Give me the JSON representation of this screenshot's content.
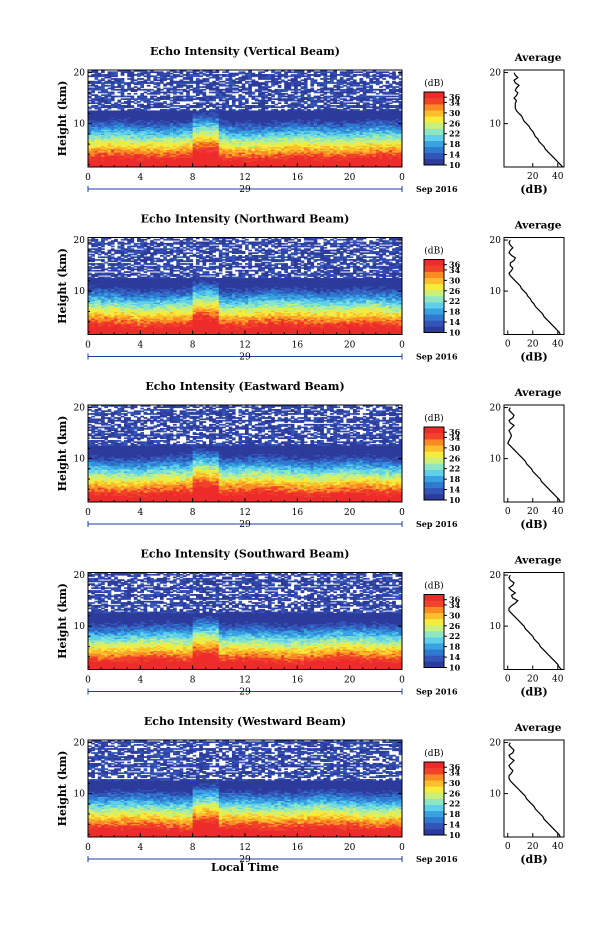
{
  "chart_data": {
    "type": "heatmap",
    "shared": {
      "xlabel": "Local Time",
      "x_ticks": [
        "0",
        "4",
        "8",
        "12",
        "16",
        "20",
        "0"
      ],
      "xlim": [
        0,
        24
      ],
      "date_day": "29",
      "date_month": "Sep 2016",
      "ylabel": "Height (km)",
      "y_ticks": [
        "20",
        "10"
      ],
      "ylim": [
        1.5,
        20.5
      ],
      "colorbar": {
        "label": "(dB)",
        "ticks": [
          "36",
          "34",
          "30",
          "26",
          "22",
          "18",
          "14",
          "10"
        ],
        "range": [
          10,
          38
        ],
        "colors": [
          "#2d3b9c",
          "#3354b8",
          "#2f7ad0",
          "#38a3e0",
          "#5fd0ec",
          "#8fe7c2",
          "#c9ef7d",
          "#f6ec3c",
          "#fbbf2b",
          "#f98a24",
          "#f0432a",
          "#ee2b2b"
        ]
      },
      "average": {
        "title": "Average",
        "xlabel": "(dB)",
        "y_ticks": [
          "20",
          "10"
        ],
        "ylim": [
          1.5,
          20.5
        ],
        "xlim": [
          -3,
          45
        ],
        "heights": [
          1.5,
          2,
          2.5,
          3,
          3.5,
          4,
          4.5,
          5,
          5.5,
          6,
          6.5,
          7,
          7.5,
          8,
          8.5,
          9,
          9.5,
          10,
          10.5,
          11,
          11.5,
          12,
          12.5,
          13,
          13.5,
          14,
          14.5,
          15,
          15.5,
          16,
          16.5,
          17,
          17.5,
          18,
          18.5,
          19,
          19.5,
          20
        ]
      }
    },
    "panels": [
      {
        "title": "Echo Intensity (Vertical Beam)",
        "avg_x_ticks": [
          "20",
          "40"
        ],
        "profile_db": [
          44,
          42,
          40,
          38,
          36,
          34,
          32,
          30,
          29,
          27,
          25,
          24,
          22,
          21,
          20,
          18,
          17,
          15,
          13,
          12,
          11,
          9,
          7,
          6,
          6,
          6,
          7,
          5,
          7,
          8,
          6,
          7,
          9,
          6,
          5,
          8,
          6,
          5
        ]
      },
      {
        "title": "Echo Intensity (Northward Beam)",
        "avg_x_ticks": [
          "0",
          "20",
          "40"
        ],
        "profile_db": [
          42,
          41,
          39,
          37,
          35,
          33,
          31,
          29,
          28,
          26,
          24,
          22,
          21,
          19,
          18,
          16,
          15,
          13,
          11,
          10,
          8,
          6,
          4,
          2,
          1,
          3,
          4,
          2,
          2,
          5,
          6,
          3,
          1,
          2,
          4,
          2,
          1,
          2
        ]
      },
      {
        "title": "Echo Intensity (Eastward Beam)",
        "avg_x_ticks": [
          "0",
          "20",
          "40"
        ],
        "profile_db": [
          42,
          41,
          39,
          37,
          35,
          33,
          31,
          29,
          27,
          26,
          24,
          22,
          20,
          19,
          17,
          15,
          14,
          12,
          10,
          8,
          6,
          4,
          2,
          0,
          1,
          2,
          3,
          2,
          1,
          3,
          5,
          2,
          1,
          4,
          5,
          3,
          1,
          2
        ]
      },
      {
        "title": "Echo Intensity (Southward Beam)",
        "avg_x_ticks": [
          "0",
          "20",
          "40"
        ],
        "profile_db": [
          43,
          41,
          40,
          38,
          36,
          34,
          32,
          30,
          28,
          26,
          25,
          23,
          21,
          20,
          18,
          16,
          14,
          13,
          11,
          9,
          7,
          5,
          3,
          1,
          1,
          3,
          6,
          8,
          4,
          3,
          6,
          3,
          1,
          4,
          5,
          2,
          1,
          2
        ]
      },
      {
        "title": "Echo Intensity (Westward Beam)",
        "avg_x_ticks": [
          "0",
          "20",
          "40"
        ],
        "profile_db": [
          42,
          41,
          39,
          37,
          35,
          33,
          31,
          29,
          28,
          26,
          24,
          22,
          21,
          19,
          17,
          15,
          14,
          12,
          10,
          8,
          6,
          4,
          2,
          1,
          1,
          3,
          4,
          2,
          1,
          3,
          5,
          2,
          1,
          4,
          5,
          3,
          1,
          2
        ]
      }
    ]
  }
}
